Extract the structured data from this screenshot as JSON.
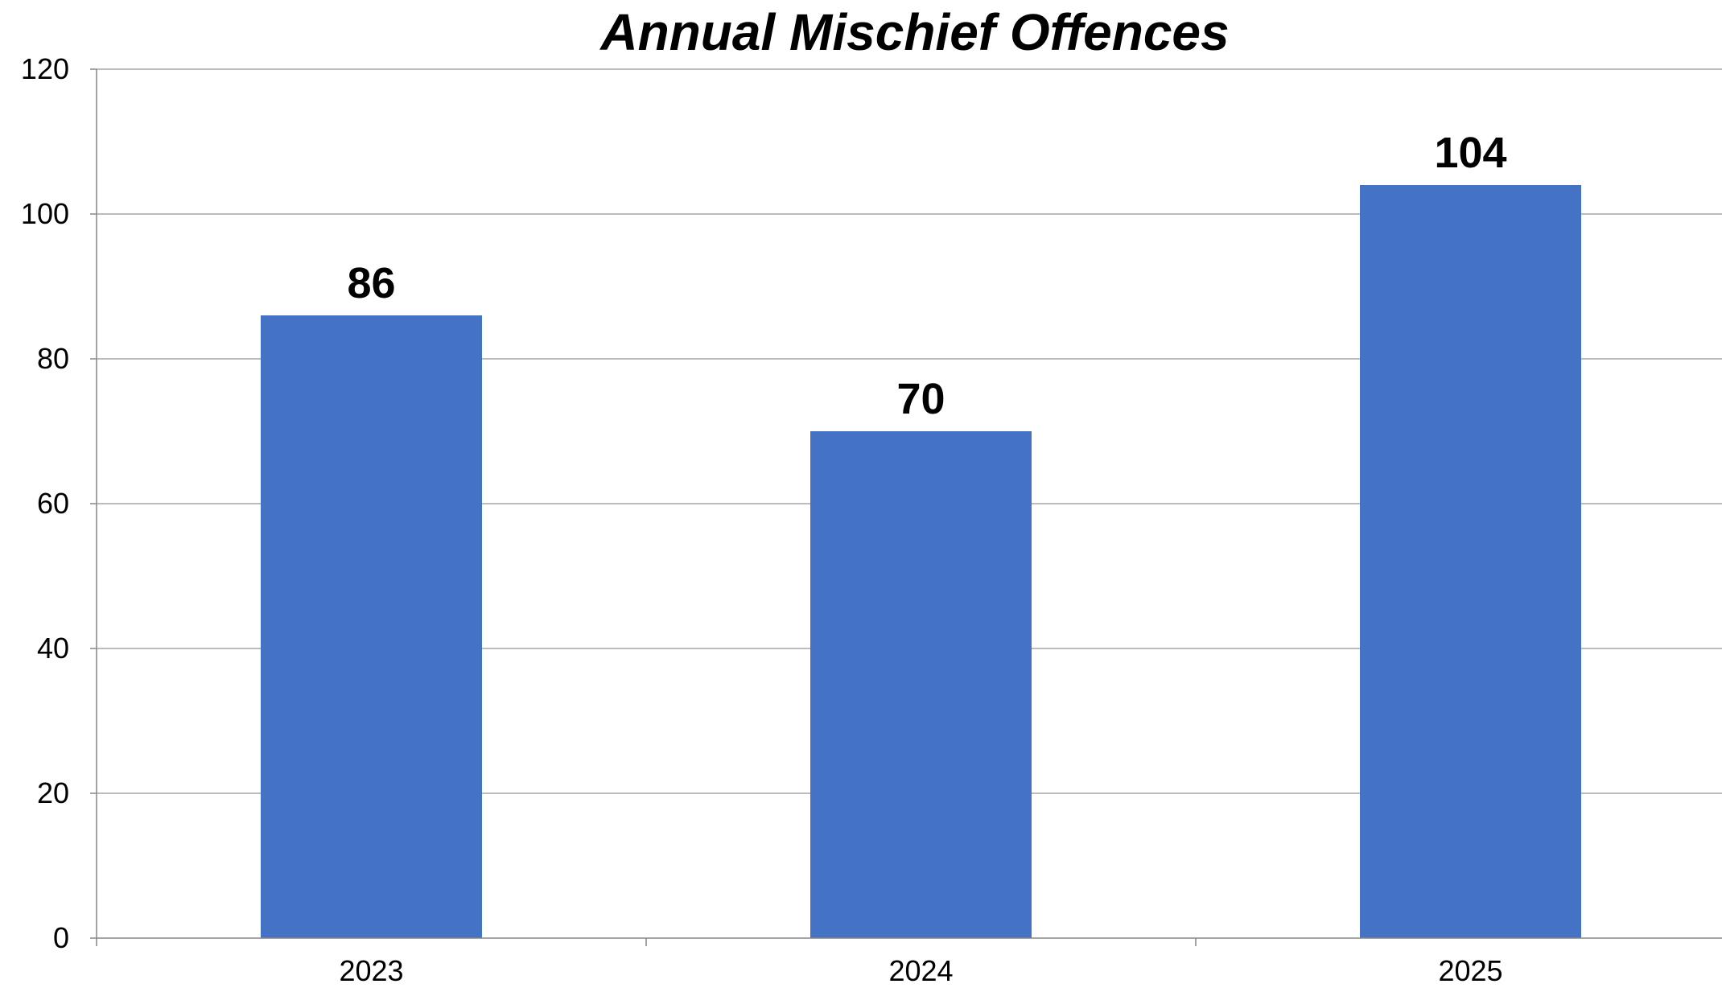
{
  "chart_data": {
    "type": "bar",
    "title": "Annual Mischief Offences",
    "xlabel": "",
    "ylabel": "",
    "categories": [
      "2023",
      "2024",
      "2025"
    ],
    "values": [
      86,
      70,
      104
    ],
    "data_labels": [
      "86",
      "70",
      "104"
    ],
    "ylim": [
      0,
      120
    ],
    "yticks": [
      0,
      20,
      40,
      60,
      80,
      100,
      120
    ],
    "ytick_labels": [
      "0",
      "20",
      "40",
      "60",
      "80",
      "100",
      "120"
    ],
    "grid": true,
    "legend": "none",
    "colors": {
      "bar": "#4472C4",
      "grid": "#A6A6A6",
      "axis": "#868686",
      "text": "#000000"
    }
  }
}
